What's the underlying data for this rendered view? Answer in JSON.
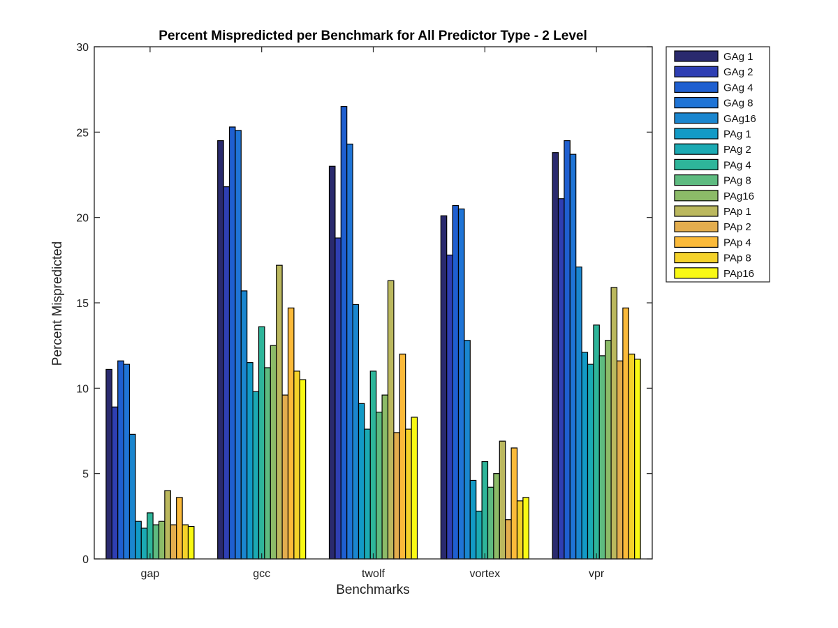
{
  "chart_data": {
    "type": "bar",
    "title": "Percent Mispredicted per Benchmark for All Predictor Type - 2 Level",
    "xlabel": "Benchmarks",
    "ylabel": "Percent Mispredicted",
    "ylim": [
      0,
      30
    ],
    "yticks": [
      0,
      5,
      10,
      15,
      20,
      25,
      30
    ],
    "grid": false,
    "legend_position": "outside-top-right",
    "categories": [
      "gap",
      "gcc",
      "twolf",
      "vortex",
      "vpr"
    ],
    "series": [
      {
        "name": "GAg 1",
        "color": "#2a2a6e",
        "values": [
          11.1,
          24.5,
          23.0,
          20.1,
          23.8
        ]
      },
      {
        "name": "GAg 2",
        "color": "#2f3fb3",
        "values": [
          8.9,
          21.8,
          18.8,
          17.8,
          21.1
        ]
      },
      {
        "name": "GAg 4",
        "color": "#1f5fd0",
        "values": [
          11.6,
          25.3,
          26.5,
          20.7,
          24.5
        ]
      },
      {
        "name": "GAg 8",
        "color": "#1f74d6",
        "values": [
          11.4,
          25.1,
          24.3,
          20.5,
          23.7
        ]
      },
      {
        "name": "GAg16",
        "color": "#1a86cf",
        "values": [
          7.3,
          15.7,
          14.9,
          12.8,
          17.1
        ]
      },
      {
        "name": "PAg 1",
        "color": "#129ac6",
        "values": [
          2.2,
          11.5,
          9.1,
          4.6,
          12.1
        ]
      },
      {
        "name": "PAg 2",
        "color": "#1baab3",
        "values": [
          1.8,
          9.8,
          7.6,
          2.8,
          11.4
        ]
      },
      {
        "name": "PAg 4",
        "color": "#2eb59a",
        "values": [
          2.7,
          13.6,
          11.0,
          5.7,
          13.7
        ]
      },
      {
        "name": "PAg 8",
        "color": "#5ebb80",
        "values": [
          2.0,
          11.2,
          8.6,
          4.2,
          11.9
        ]
      },
      {
        "name": "PAg16",
        "color": "#8cbb68",
        "values": [
          2.2,
          12.5,
          9.6,
          5.0,
          12.8
        ]
      },
      {
        "name": "PAp 1",
        "color": "#bbb85e",
        "values": [
          4.0,
          17.2,
          16.3,
          6.9,
          15.9
        ]
      },
      {
        "name": "PAp 2",
        "color": "#e3ad4e",
        "values": [
          2.0,
          9.6,
          7.4,
          2.3,
          11.6
        ]
      },
      {
        "name": "PAp 4",
        "color": "#fbba3a",
        "values": [
          3.6,
          14.7,
          12.0,
          6.5,
          14.7
        ]
      },
      {
        "name": "PAp 8",
        "color": "#f4d22a",
        "values": [
          2.0,
          11.0,
          7.6,
          3.4,
          12.0
        ]
      },
      {
        "name": "PAp16",
        "color": "#f9f914",
        "values": [
          1.9,
          10.5,
          8.3,
          3.6,
          11.7
        ]
      }
    ]
  }
}
